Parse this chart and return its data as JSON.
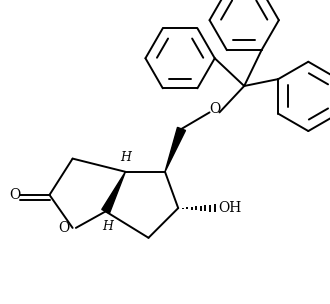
{
  "background_color": "#ffffff",
  "line_color": "#000000",
  "line_width": 1.4,
  "figsize": [
    3.3,
    3.04
  ],
  "dpi": 100,
  "xlim": [
    0.0,
    10.0
  ],
  "ylim": [
    0.0,
    9.2
  ]
}
